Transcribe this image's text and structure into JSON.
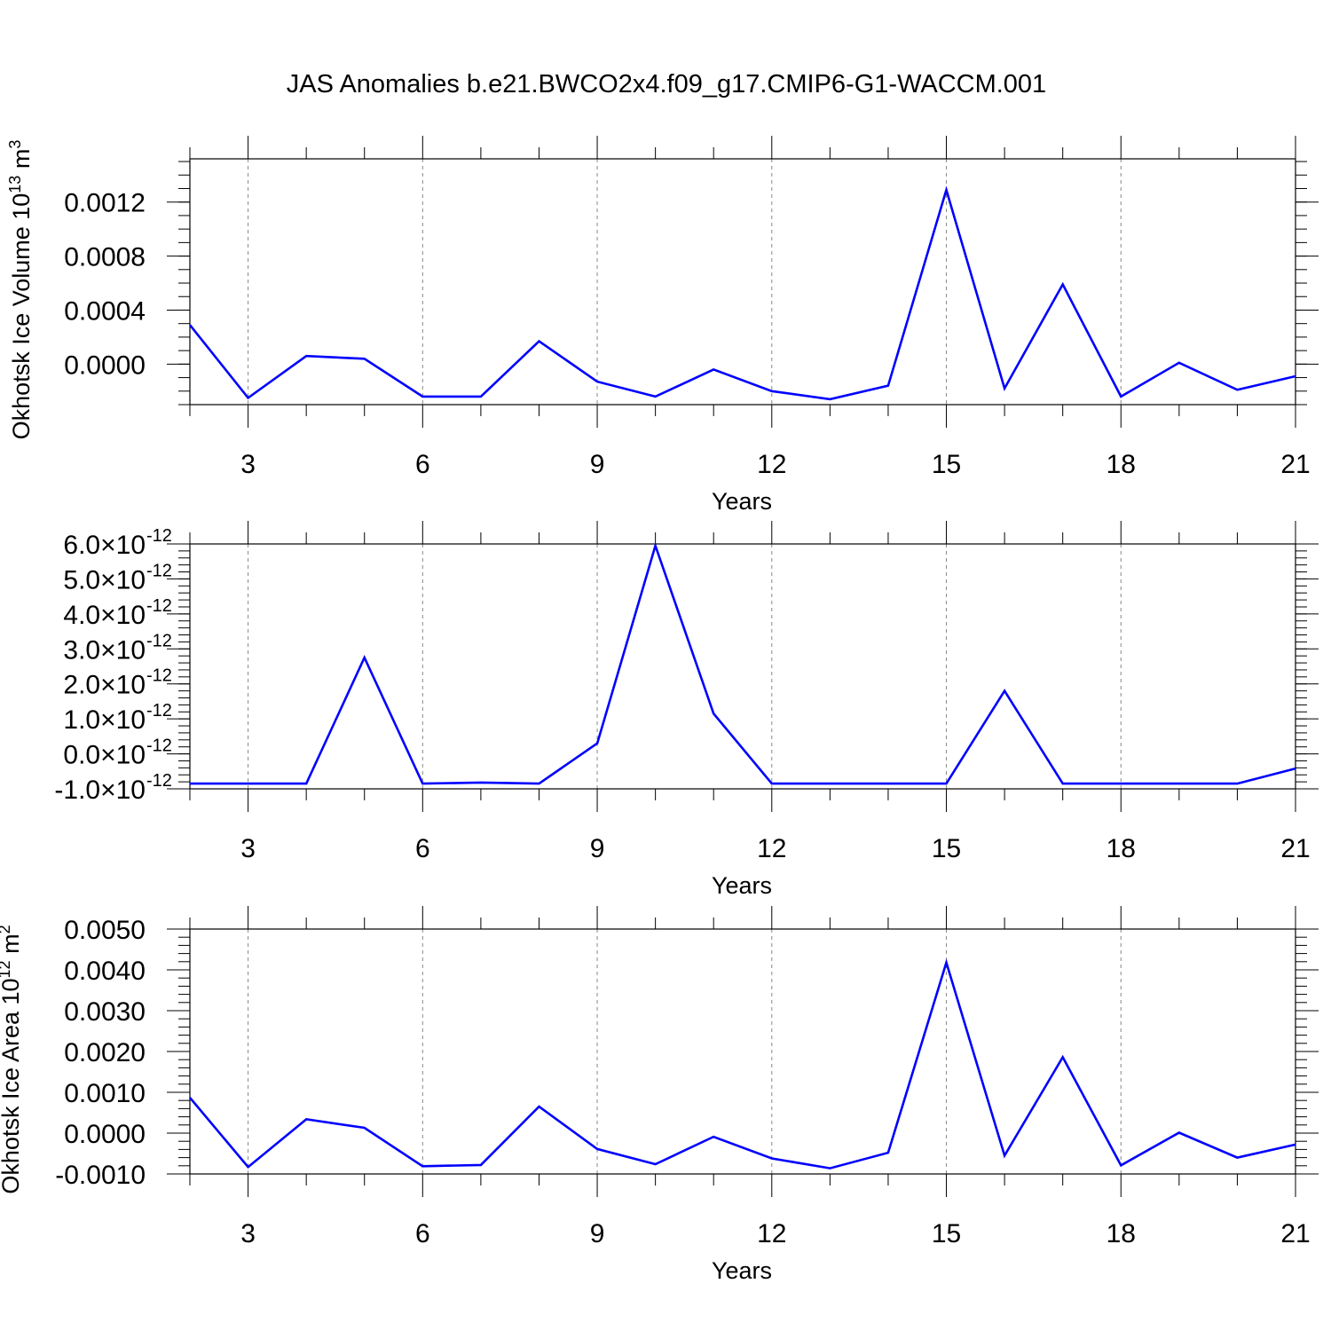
{
  "title": "JAS Anomalies b.e21.BWCO2x4.f09_g17.CMIP6-G1-WACCM.001",
  "chart_data": [
    {
      "type": "line",
      "ylabel": "Okhotsk Ice Volume 10",
      "ylabel_exp": "13",
      "ylabel_unit": " m",
      "ylabel_unit_exp": "3",
      "xlabel": "Years",
      "xlim": [
        2,
        21
      ],
      "ylim": [
        -0.0003,
        0.00152
      ],
      "xticks": [
        3,
        6,
        9,
        12,
        15,
        18,
        21
      ],
      "xtick_labels": [
        "3",
        "6",
        "9",
        "12",
        "15",
        "18",
        "21"
      ],
      "yticks": [
        0.0,
        0.0004,
        0.0008,
        0.0012
      ],
      "ytick_labels": [
        "0.0000",
        "0.0004",
        "0.0008",
        "0.0012"
      ],
      "ytick_minor_step": 0.0001,
      "grid": "vertical dashed at major x ticks",
      "color": "#0000ff",
      "x": [
        2,
        3,
        4,
        5,
        6,
        7,
        8,
        9,
        10,
        11,
        12,
        13,
        14,
        15,
        16,
        17,
        18,
        19,
        20,
        21
      ],
      "values": [
        0.00029,
        -0.00025,
        6e-05,
        4e-05,
        -0.00024,
        -0.00024,
        0.00017,
        -0.00013,
        -0.00024,
        -4e-05,
        -0.0002,
        -0.00026,
        -0.00016,
        0.00129,
        -0.00018,
        0.00059,
        -0.00024,
        1e-05,
        -0.00019,
        -9e-05
      ]
    },
    {
      "type": "line",
      "ylabel": "",
      "xlabel": "Years",
      "xlim": [
        2,
        21
      ],
      "ylim": [
        -1e-12,
        6e-12
      ],
      "xticks": [
        3,
        6,
        9,
        12,
        15,
        18,
        21
      ],
      "xtick_labels": [
        "3",
        "6",
        "9",
        "12",
        "15",
        "18",
        "21"
      ],
      "yticks": [
        -1e-12,
        0.0,
        1e-12,
        2e-12,
        3e-12,
        4e-12,
        5e-12,
        6e-12
      ],
      "ytick_labels": [
        "-1.0",
        "0.0",
        "1.0",
        "2.0",
        "3.0",
        "4.0",
        "5.0",
        "6.0"
      ],
      "ytick_suffix": "×10",
      "ytick_exp": "-12",
      "ytick_minor_step": 2e-13,
      "grid": "vertical dashed at major x ticks",
      "color": "#0000ff",
      "x": [
        2,
        3,
        4,
        5,
        6,
        7,
        8,
        9,
        10,
        11,
        12,
        13,
        14,
        15,
        16,
        17,
        18,
        19,
        20,
        21
      ],
      "values": [
        -8.5e-13,
        -8.5e-13,
        -8.5e-13,
        2.75e-12,
        -8.5e-13,
        -8.2e-13,
        -8.5e-13,
        3e-13,
        5.95e-12,
        1.15e-12,
        -8.5e-13,
        -8.5e-13,
        -8.5e-13,
        -8.5e-13,
        1.8e-12,
        -8.5e-13,
        -8.5e-13,
        -8.5e-13,
        -8.5e-13,
        -4.2e-13
      ]
    },
    {
      "type": "line",
      "ylabel": "Okhotsk Ice Area 10",
      "ylabel_exp": "12",
      "ylabel_unit": " m",
      "ylabel_unit_exp": "2",
      "xlabel": "Years",
      "xlim": [
        2,
        21
      ],
      "ylim": [
        -0.001,
        0.005
      ],
      "xticks": [
        3,
        6,
        9,
        12,
        15,
        18,
        21
      ],
      "xtick_labels": [
        "3",
        "6",
        "9",
        "12",
        "15",
        "18",
        "21"
      ],
      "yticks": [
        -0.001,
        0.0,
        0.001,
        0.002,
        0.003,
        0.004,
        0.005
      ],
      "ytick_labels": [
        "-0.0010",
        "0.0000",
        "0.0010",
        "0.0020",
        "0.0030",
        "0.0040",
        "0.0050"
      ],
      "ytick_minor_step": 0.0002,
      "grid": "vertical dashed at major x ticks",
      "color": "#0000ff",
      "x": [
        2,
        3,
        4,
        5,
        6,
        7,
        8,
        9,
        10,
        11,
        12,
        13,
        14,
        15,
        16,
        17,
        18,
        19,
        20,
        21
      ],
      "values": [
        0.00087,
        -0.00083,
        0.00034,
        0.00013,
        -0.00081,
        -0.00078,
        0.00065,
        -0.00039,
        -0.00076,
        -9e-05,
        -0.00062,
        -0.00086,
        -0.00048,
        0.00418,
        -0.00055,
        0.00186,
        -0.00079,
        1e-05,
        -0.0006,
        -0.00028
      ]
    }
  ]
}
